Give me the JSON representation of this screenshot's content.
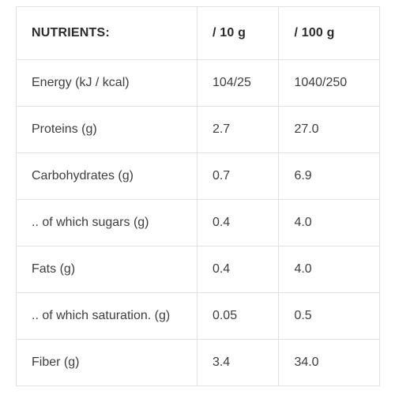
{
  "table": {
    "headers": {
      "nutrients": "NUTRIENTS:",
      "per_10g": "/ 10 g",
      "per_100g": "/ 100 g"
    },
    "rows": [
      {
        "name": "Energy (kJ / kcal)",
        "per_10g": "104/25",
        "per_100g": "1040/250"
      },
      {
        "name": "Proteins (g)",
        "per_10g": "2.7",
        "per_100g": "27.0"
      },
      {
        "name": "Carbohydrates (g)",
        "per_10g": "0.7",
        "per_100g": "6.9"
      },
      {
        "name": ".. of which sugars (g)",
        "per_10g": "0.4",
        "per_100g": "4.0"
      },
      {
        "name": "Fats (g)",
        "per_10g": "0.4",
        "per_100g": "4.0"
      },
      {
        "name": ".. of which saturation. (g)",
        "per_10g": "0.05",
        "per_100g": "0.5"
      },
      {
        "name": "Fiber (g)",
        "per_10g": "3.4",
        "per_100g": "34.0"
      }
    ]
  },
  "colors": {
    "border": "#e2e2e2",
    "text": "#3d3d3d",
    "header_text": "#2b2b2b",
    "background": "#ffffff"
  }
}
